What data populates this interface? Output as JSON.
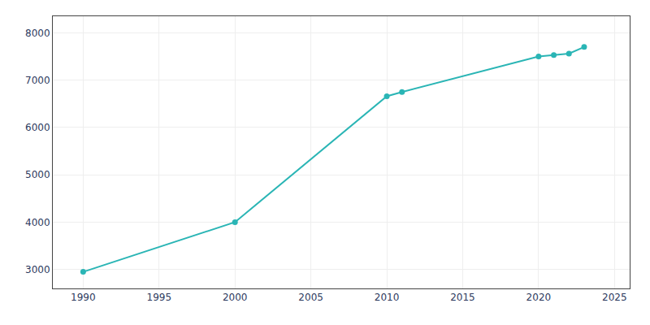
{
  "chart_data": {
    "type": "line",
    "x": [
      1990,
      2000,
      2010,
      2011,
      2020,
      2021,
      2022,
      2023
    ],
    "values": [
      2950,
      4000,
      6660,
      6750,
      7500,
      7530,
      7560,
      7700
    ],
    "color": "#2ab5b5",
    "marker": "circle",
    "xlim": [
      1988,
      2026
    ],
    "ylim": [
      2600,
      8350
    ],
    "xticks": [
      1990,
      1995,
      2000,
      2005,
      2010,
      2015,
      2020,
      2025
    ],
    "yticks": [
      3000,
      4000,
      5000,
      6000,
      7000,
      8000
    ],
    "grid": true
  }
}
